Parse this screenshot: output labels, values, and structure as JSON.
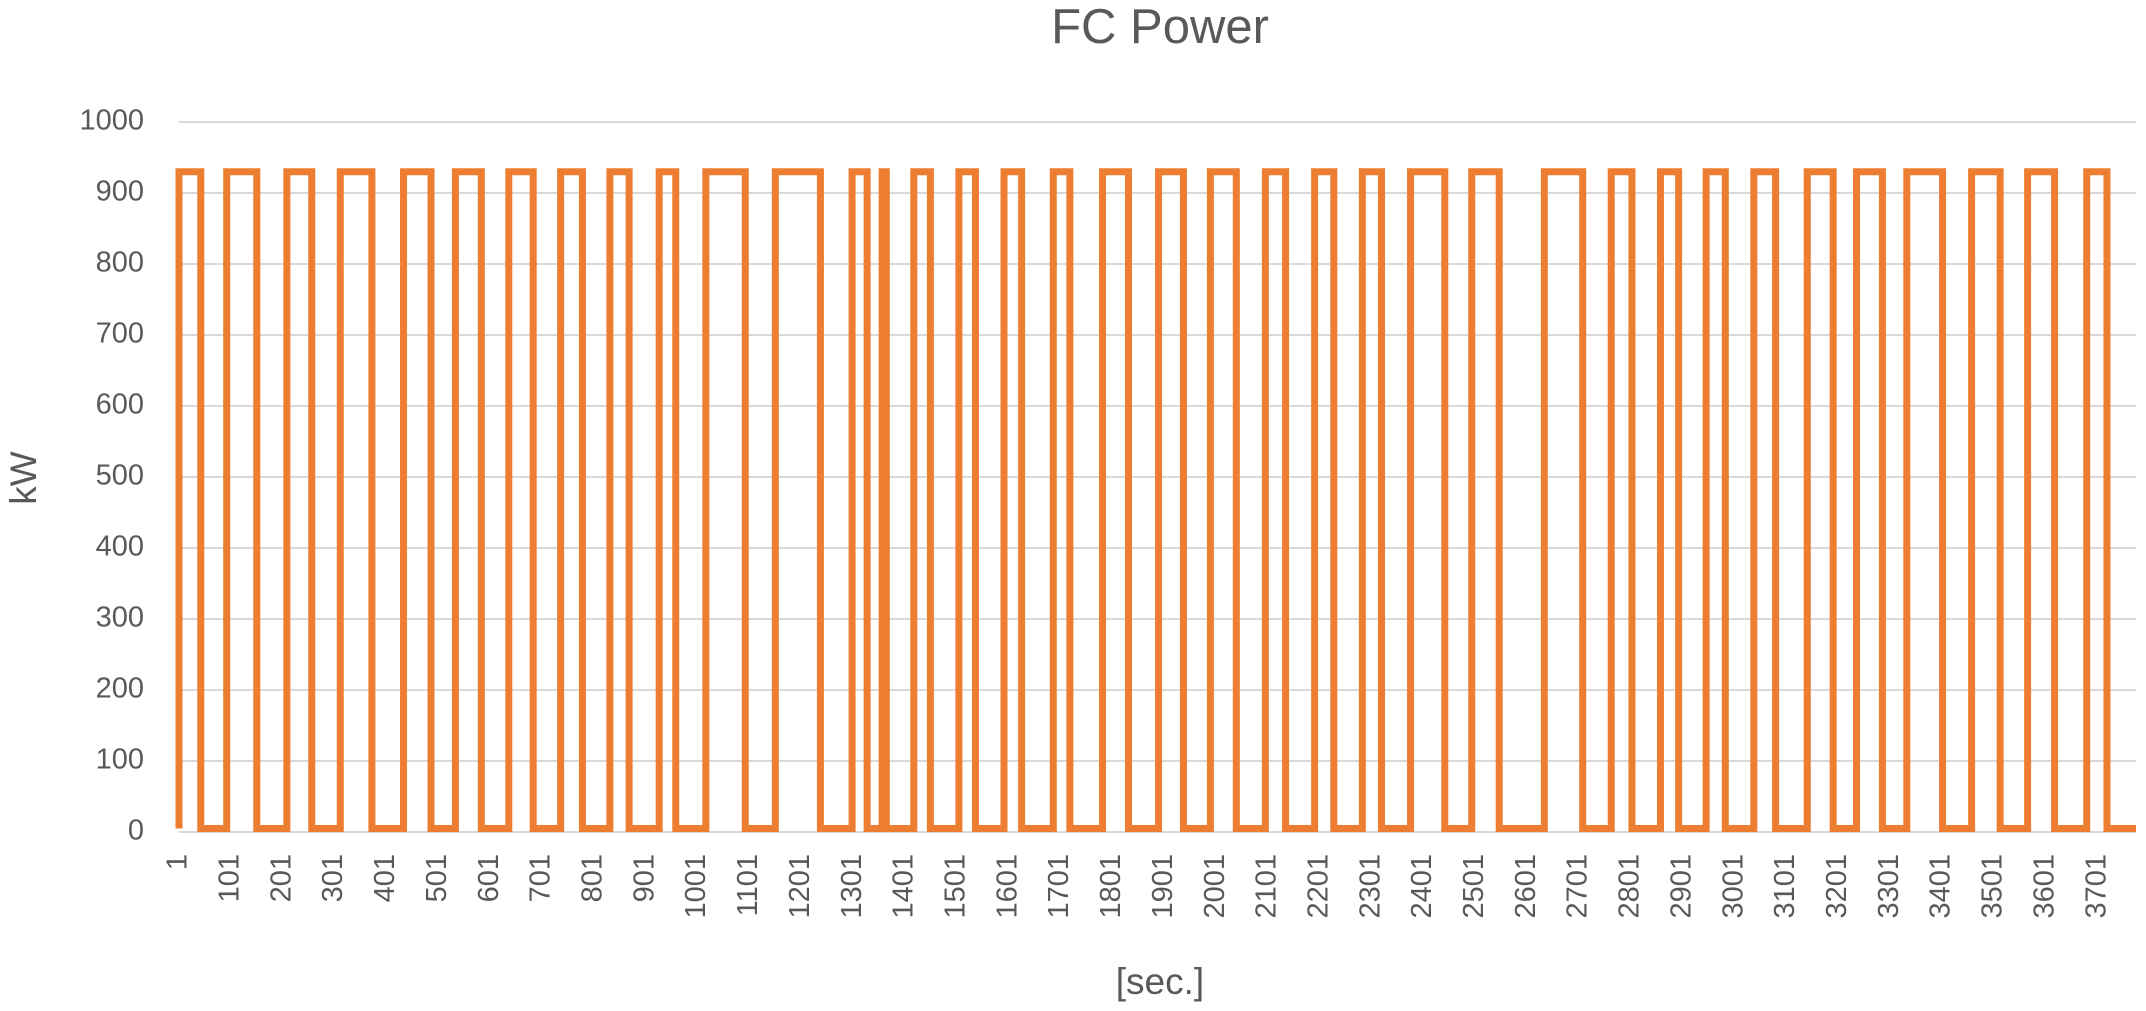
{
  "chart_data": {
    "type": "line",
    "title": "FC Power",
    "x_label": "[sec.]",
    "y_label": "kW",
    "x": [
      1,
      1,
      43,
      43,
      93,
      93,
      151,
      151,
      209,
      209,
      257,
      257,
      312,
      312,
      373,
      373,
      434,
      434,
      487,
      487,
      534,
      534,
      584,
      584,
      637,
      637,
      684,
      684,
      737,
      737,
      779,
      779,
      832,
      832,
      869,
      869,
      927,
      927,
      959,
      959,
      1017,
      1017,
      1093,
      1093,
      1151,
      1151,
      1238,
      1238,
      1299,
      1299,
      1328,
      1328,
      1357,
      1357,
      1365,
      1365,
      1418,
      1418,
      1450,
      1450,
      1505,
      1505,
      1537,
      1537,
      1592,
      1592,
      1626,
      1626,
      1687,
      1687,
      1719,
      1719,
      1782,
      1782,
      1832,
      1832,
      1890,
      1890,
      1938,
      1938,
      1990,
      1990,
      2040,
      2040,
      2096,
      2096,
      2135,
      2135,
      2191,
      2191,
      2228,
      2228,
      2283,
      2283,
      2320,
      2320,
      2376,
      2376,
      2442,
      2442,
      2494,
      2494,
      2547,
      2547,
      2634,
      2634,
      2708,
      2708,
      2763,
      2763,
      2803,
      2803,
      2858,
      2858,
      2893,
      2893,
      2946,
      2946,
      2983,
      2983,
      3038,
      3038,
      3080,
      3080,
      3141,
      3141,
      3191,
      3191,
      3236,
      3236,
      3286,
      3286,
      3333,
      3333,
      3402,
      3402,
      3458,
      3458,
      3513,
      3513,
      3566,
      3566,
      3618,
      3618,
      3680,
      3680,
      3719,
      3719,
      3775
    ],
    "values": [
      5,
      930,
      930,
      5,
      5,
      930,
      930,
      5,
      5,
      930,
      930,
      5,
      5,
      930,
      930,
      5,
      5,
      930,
      930,
      5,
      5,
      930,
      930,
      5,
      5,
      930,
      930,
      5,
      5,
      930,
      930,
      5,
      5,
      930,
      930,
      5,
      5,
      930,
      930,
      5,
      5,
      930,
      930,
      5,
      5,
      930,
      930,
      5,
      5,
      930,
      930,
      5,
      5,
      930,
      930,
      5,
      5,
      930,
      930,
      5,
      5,
      930,
      930,
      5,
      5,
      930,
      930,
      5,
      5,
      930,
      930,
      5,
      5,
      930,
      930,
      5,
      5,
      930,
      930,
      5,
      5,
      930,
      930,
      5,
      5,
      930,
      930,
      5,
      5,
      930,
      930,
      5,
      5,
      930,
      930,
      5,
      5,
      930,
      930,
      5,
      5,
      930,
      930,
      5,
      5,
      930,
      930,
      5,
      5,
      930,
      930,
      5,
      5,
      930,
      930,
      5,
      5,
      930,
      930,
      5,
      5,
      930,
      930,
      5,
      5,
      930,
      930,
      5,
      5,
      930,
      930,
      5,
      5,
      930,
      930,
      5,
      5,
      930,
      930,
      5,
      5,
      930,
      930,
      5,
      5,
      930,
      930,
      5,
      5
    ],
    "color": "#ed7d31",
    "xlim": [
      1,
      3775
    ],
    "xticks": [
      1,
      101,
      201,
      301,
      401,
      501,
      601,
      701,
      801,
      901,
      1001,
      1101,
      1201,
      1301,
      1401,
      1501,
      1601,
      1701,
      1801,
      1901,
      2001,
      2101,
      2201,
      2301,
      2401,
      2501,
      2601,
      2701,
      2801,
      2901,
      3001,
      3101,
      3201,
      3301,
      3401,
      3501,
      3601,
      3701
    ],
    "ylim": [
      0,
      1000
    ],
    "yticks": [
      0,
      100,
      200,
      300,
      400,
      500,
      600,
      700,
      800,
      900,
      1000
    ],
    "grid": true
  }
}
